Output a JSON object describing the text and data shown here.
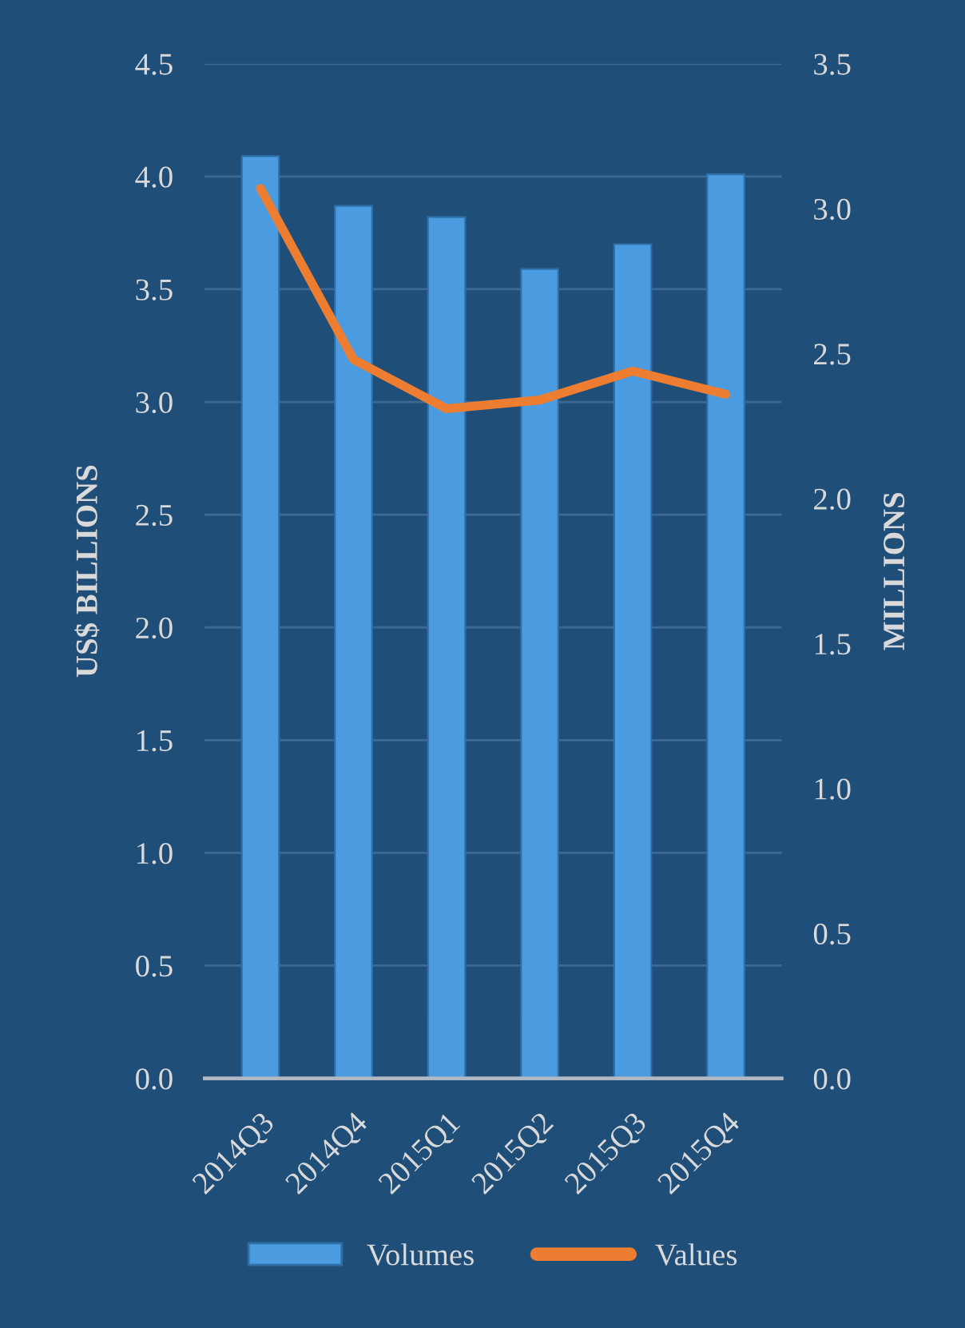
{
  "chart_data": {
    "type": "bar",
    "categories": [
      "2014Q3",
      "2014Q4",
      "2015Q1",
      "2015Q2",
      "2015Q3",
      "2015Q4"
    ],
    "ylabel": "US$ BILLIONS",
    "y2label": "MILLIONS",
    "series": [
      {
        "name": "Volumes",
        "color": "#4a9be0",
        "values": [
          4.09,
          3.87,
          3.82,
          3.59,
          3.7,
          4.01
        ]
      },
      {
        "name": "Values",
        "type": "line",
        "axis": "y2",
        "color": "#ed7d31",
        "values": [
          3.07,
          2.48,
          2.31,
          2.34,
          2.44,
          2.36
        ]
      }
    ],
    "ylim": [
      0,
      4.5
    ],
    "yticks": [
      {
        "value": 0,
        "label": "0.0"
      },
      0.5,
      {
        "value": 1,
        "label": "1.0"
      },
      1.5,
      {
        "value": 2,
        "label": "2.0"
      },
      2.5,
      {
        "value": 3,
        "label": "3.0"
      },
      3.5,
      {
        "value": 4,
        "label": "4.0"
      },
      4.5
    ],
    "y2lim": [
      0,
      3.5
    ],
    "y2ticks": [
      {
        "value": 0,
        "label": "0.0"
      },
      0.5,
      {
        "value": 1,
        "label": "1.0"
      },
      1.5,
      {
        "value": 2,
        "label": "2.0"
      },
      2.5,
      {
        "value": 3,
        "label": "3.0"
      },
      3.5
    ],
    "grid": "y",
    "legend": "bottom",
    "marker": "none",
    "line_style": "solid"
  }
}
